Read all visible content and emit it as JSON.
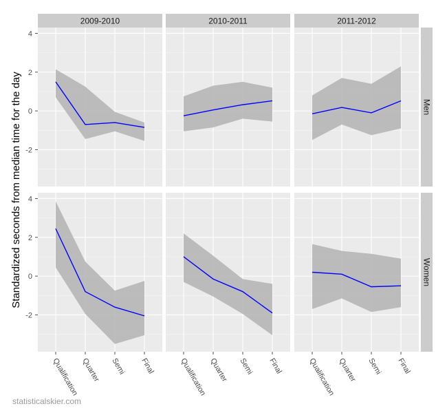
{
  "chart_data": {
    "type": "line",
    "ylabel": "Standardized seconds from median time for the day",
    "xlabel": "",
    "categories": [
      "Qualification",
      "Quarter",
      "Semi",
      "Final"
    ],
    "col_facets": [
      "2009-2010",
      "2010-2011",
      "2011-2012"
    ],
    "row_facets": [
      "Men",
      "Women"
    ],
    "ylim": [
      -3.9,
      4.3
    ],
    "yticks": [
      -2,
      0,
      2,
      4
    ],
    "grid": true,
    "colors": {
      "panel_bg": "#ebebeb",
      "strip_bg": "#cccccc",
      "grid_major": "#ffffff",
      "grid_minor": "#f5f5f5",
      "ribbon": "#b3b3b3",
      "line": "#0000ff"
    },
    "panels": [
      {
        "row": "Men",
        "col": "2009-2010",
        "values": [
          1.5,
          -0.7,
          -0.6,
          -0.85
        ],
        "lower": [
          0.7,
          -1.45,
          -1.05,
          -1.55
        ],
        "upper": [
          2.15,
          1.25,
          -0.05,
          -0.6
        ]
      },
      {
        "row": "Men",
        "col": "2010-2011",
        "values": [
          -0.25,
          0.05,
          0.32,
          0.52
        ],
        "lower": [
          -1.05,
          -0.85,
          -0.4,
          -0.55
        ],
        "upper": [
          0.75,
          1.3,
          1.5,
          1.2
        ]
      },
      {
        "row": "Men",
        "col": "2011-2012",
        "values": [
          -0.15,
          0.18,
          -0.1,
          0.52
        ],
        "lower": [
          -1.5,
          -0.7,
          -1.25,
          -0.9
        ],
        "upper": [
          0.8,
          1.7,
          1.4,
          2.3
        ]
      },
      {
        "row": "Women",
        "col": "2009-2010",
        "values": [
          2.45,
          -0.8,
          -1.6,
          -2.05
        ],
        "lower": [
          0.45,
          -1.95,
          -3.5,
          -3.05
        ],
        "upper": [
          3.85,
          0.75,
          -0.75,
          -0.25
        ]
      },
      {
        "row": "Women",
        "col": "2010-2011",
        "values": [
          1.0,
          -0.15,
          -0.8,
          -1.9
        ],
        "lower": [
          -0.3,
          -1.05,
          -1.95,
          -3.05
        ],
        "upper": [
          2.2,
          1.05,
          -0.15,
          -0.4
        ]
      },
      {
        "row": "Women",
        "col": "2011-2012",
        "values": [
          0.2,
          0.1,
          -0.55,
          -0.5
        ],
        "lower": [
          -1.7,
          -1.15,
          -1.85,
          -1.6
        ],
        "upper": [
          1.65,
          1.3,
          1.15,
          0.9
        ]
      }
    ]
  },
  "watermark": "statisticalskier.com"
}
